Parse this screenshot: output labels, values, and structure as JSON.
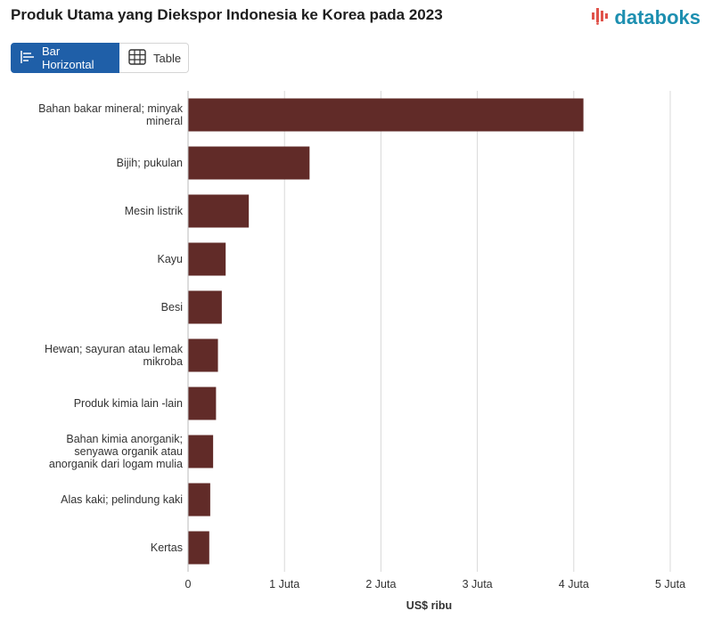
{
  "header": {
    "title": "Produk Utama yang Diekspor Indonesia ke Korea pada 2023",
    "brand": "databoks"
  },
  "view_toggle": {
    "bar_label": "Bar Horizontal",
    "table_label": "Table"
  },
  "colors": {
    "bar": "#612b28",
    "accent": "#1f5fa8",
    "brand": "#1d8fb0",
    "brand_icon": "#e0524a",
    "grid": "#d9d9d9"
  },
  "chart_data": {
    "type": "bar",
    "orientation": "horizontal",
    "categories": [
      [
        "Bahan bakar mineral; minyak",
        "mineral"
      ],
      [
        "Bijih; pukulan"
      ],
      [
        "Mesin listrik"
      ],
      [
        "Kayu"
      ],
      [
        "Besi"
      ],
      [
        "Hewan; sayuran atau lemak",
        "mikroba"
      ],
      [
        "Produk kimia lain -lain"
      ],
      [
        "Bahan kimia anorganik;",
        "senyawa organik atau",
        "anorganik dari logam mulia"
      ],
      [
        "Alas kaki; pelindung kaki"
      ],
      [
        "Kertas"
      ]
    ],
    "values": [
      4100000,
      1260000,
      630000,
      390000,
      350000,
      310000,
      290000,
      260000,
      230000,
      220000
    ],
    "xlabel": "US$ ribu",
    "xlim": [
      0,
      5000000
    ],
    "xticks": [
      0,
      1000000,
      2000000,
      3000000,
      4000000,
      5000000
    ],
    "xtick_labels": [
      "0",
      "1 Juta",
      "2 Juta",
      "3 Juta",
      "4 Juta",
      "5 Juta"
    ],
    "grid": true
  }
}
